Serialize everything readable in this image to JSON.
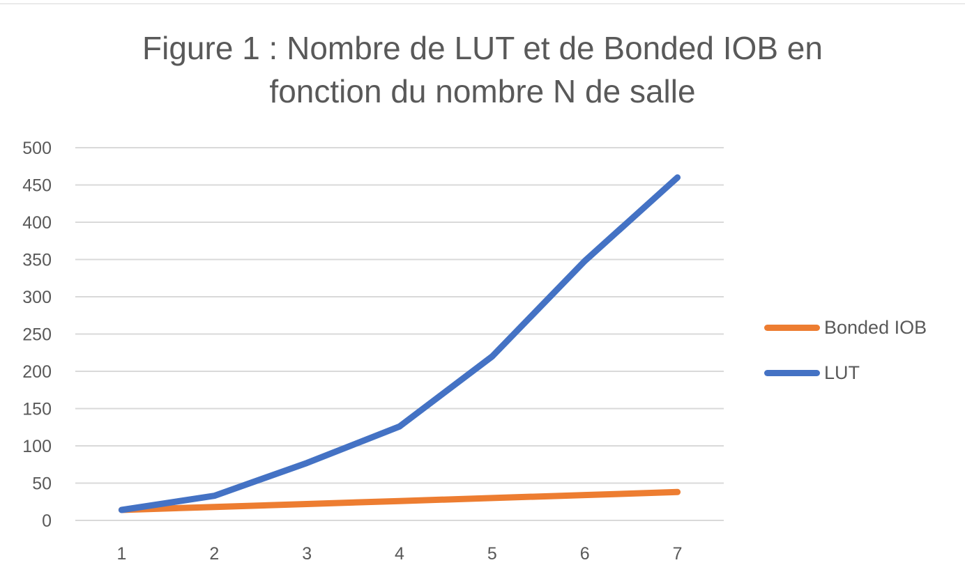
{
  "chart_data": {
    "type": "line",
    "title_lines": [
      "Figure 1 : Nombre de LUT et de Bonded IOB en",
      "fonction du nombre N de salle"
    ],
    "xlabel": "",
    "ylabel": "",
    "categories": [
      "1",
      "2",
      "3",
      "4",
      "5",
      "6",
      "7"
    ],
    "ylim": [
      0,
      500
    ],
    "yticks": [
      "0",
      "50",
      "100",
      "150",
      "200",
      "250",
      "300",
      "350",
      "400",
      "450",
      "500"
    ],
    "grid": true,
    "legend_position": "right",
    "series": [
      {
        "name": "Bonded IOB",
        "values": [
          14,
          18,
          22,
          26,
          30,
          34,
          38
        ],
        "color": "#ed7d31"
      },
      {
        "name": "LUT",
        "values": [
          14,
          33,
          77,
          126,
          220,
          348,
          460
        ],
        "color": "#4472c4"
      }
    ]
  },
  "colors": {
    "grid": "#d9d9d9",
    "text": "#595959"
  }
}
